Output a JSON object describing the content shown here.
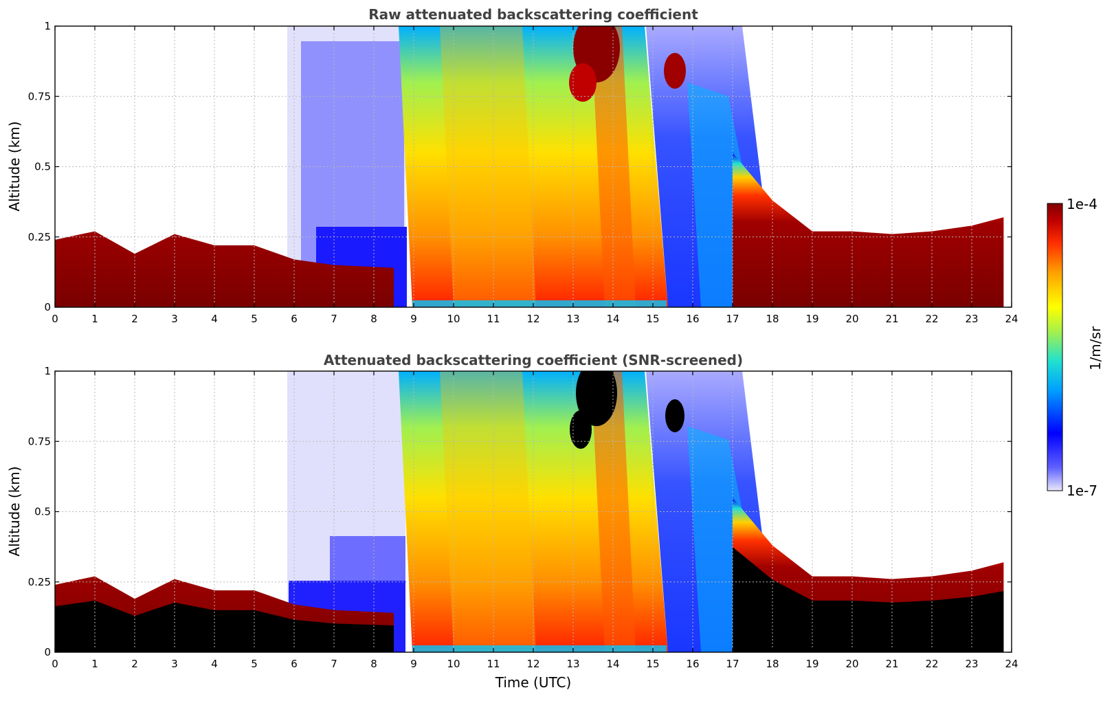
{
  "chart_data": [
    {
      "type": "heatmap",
      "title": "Raw attenuated backscattering coefficient",
      "xlabel": "",
      "ylabel": "Altitude (km)",
      "xlim": [
        0,
        24
      ],
      "ylim": [
        0,
        1
      ],
      "xticks": [
        "0",
        "1",
        "2",
        "3",
        "4",
        "5",
        "6",
        "7",
        "8",
        "9",
        "10",
        "11",
        "12",
        "13",
        "14",
        "15",
        "16",
        "17",
        "18",
        "19",
        "20",
        "21",
        "22",
        "23",
        "24"
      ],
      "yticks": [
        "0",
        "0.25",
        "0.5",
        "0.75",
        "1"
      ],
      "grid": true,
      "colorscale": "jet",
      "cloud_layer": [
        {
          "t": 0,
          "top": 0.24
        },
        {
          "t": 1,
          "top": 0.27
        },
        {
          "t": 2,
          "top": 0.19
        },
        {
          "t": 3,
          "top": 0.26
        },
        {
          "t": 4,
          "top": 0.22
        },
        {
          "t": 5,
          "top": 0.22
        },
        {
          "t": 6,
          "top": 0.17
        },
        {
          "t": 7,
          "top": 0.15
        },
        {
          "t": 8.5,
          "top": 0.14
        },
        {
          "t": 17,
          "top": 0.55
        },
        {
          "t": 18,
          "top": 0.38
        },
        {
          "t": 19,
          "top": 0.27
        },
        {
          "t": 20,
          "top": 0.27
        },
        {
          "t": 21,
          "top": 0.26
        },
        {
          "t": 22,
          "top": 0.27
        },
        {
          "t": 23,
          "top": 0.29
        },
        {
          "t": 23.8,
          "top": 0.32
        }
      ]
    },
    {
      "type": "heatmap",
      "title": "Attenuated backscattering coefficient (SNR-screened)",
      "xlabel": "Time (UTC)",
      "ylabel": "Altitude (km)",
      "xlim": [
        0,
        24
      ],
      "ylim": [
        0,
        1
      ],
      "xticks": [
        "0",
        "1",
        "2",
        "3",
        "4",
        "5",
        "6",
        "7",
        "8",
        "9",
        "10",
        "11",
        "12",
        "13",
        "14",
        "15",
        "16",
        "17",
        "18",
        "19",
        "20",
        "21",
        "22",
        "23",
        "24"
      ],
      "yticks": [
        "0",
        "0.25",
        "0.5",
        "0.75",
        "1"
      ],
      "grid": true,
      "colorscale": "jet",
      "screened_color": "#000000"
    }
  ],
  "colorbar": {
    "label": "1/m/sr",
    "max_label": "1e-4",
    "min_label": "1e-7",
    "colors": [
      "#e8e8fa",
      "#0000ff",
      "#00aaff",
      "#20e0d0",
      "#a0f050",
      "#ffff00",
      "#ffa000",
      "#ff3000",
      "#c00000",
      "#800000"
    ]
  }
}
